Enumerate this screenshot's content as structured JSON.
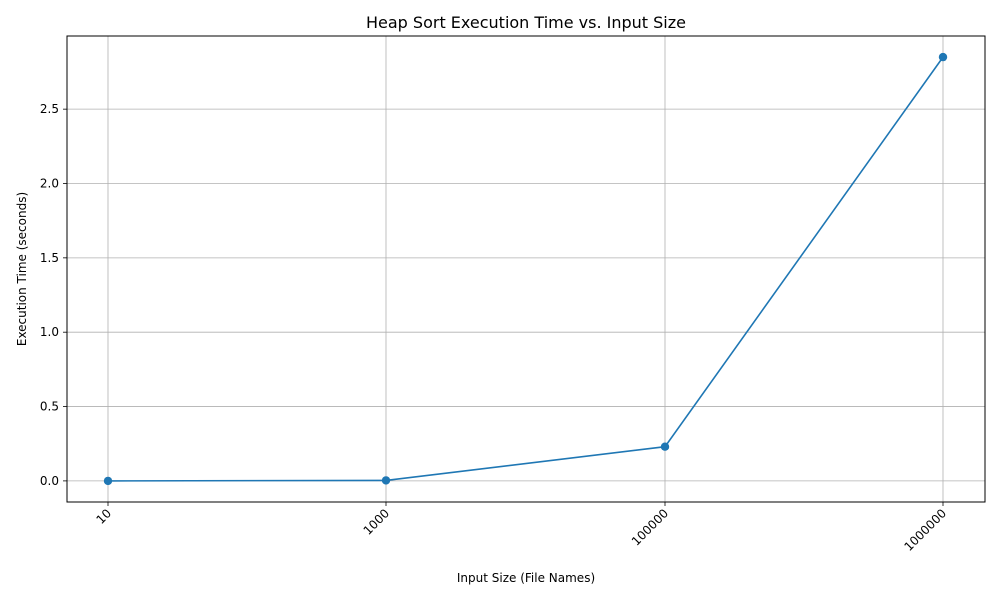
{
  "chart_data": {
    "type": "line",
    "title": "Heap Sort Execution Time vs. Input Size",
    "xlabel": "Input Size (File Names)",
    "ylabel": "Execution Time (seconds)",
    "categories": [
      "10",
      "1000",
      "100000",
      "1000000"
    ],
    "series": [
      {
        "values": [
          0.0,
          0.003,
          0.23,
          2.85
        ],
        "color": "#1f77b4",
        "marker": "circle"
      }
    ],
    "yticks": [
      0.0,
      0.5,
      1.0,
      1.5,
      2.0,
      2.5
    ],
    "ytick_labels": [
      "0.0",
      "0.5",
      "1.0",
      "1.5",
      "2.0",
      "2.5"
    ],
    "ylim": [
      -0.142,
      2.992
    ],
    "grid": true,
    "xtick_rotation": "45 degrees"
  }
}
